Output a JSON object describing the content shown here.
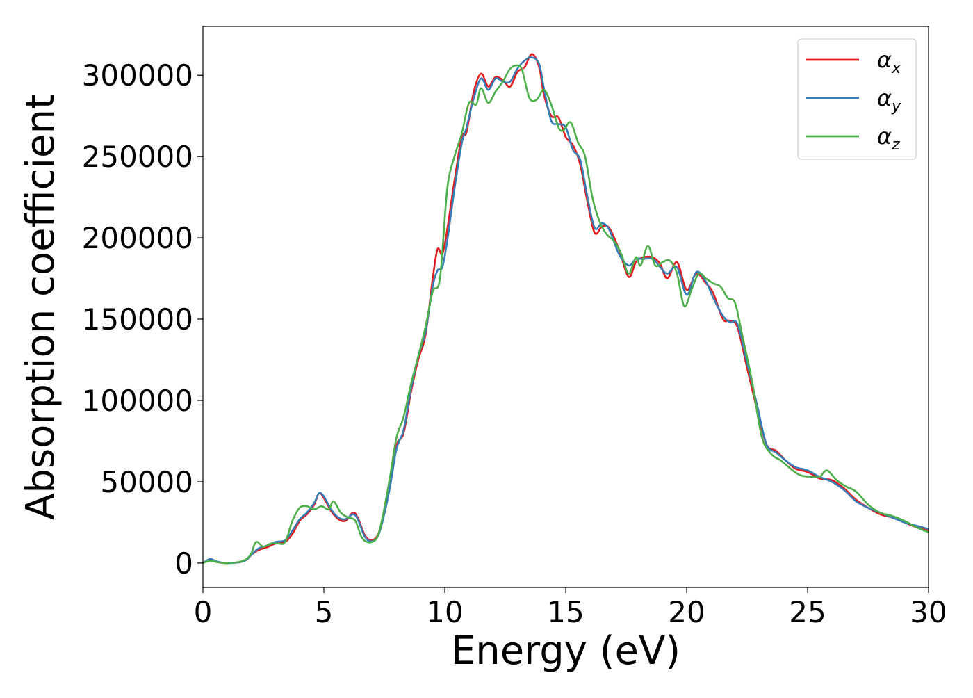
{
  "chart_data": {
    "type": "line",
    "title": "",
    "xlabel": "Energy (eV)",
    "ylabel": "Absorption coefficient",
    "xlim": [
      0,
      30
    ],
    "ylim": [
      -15000,
      330000
    ],
    "xticks": [
      0,
      5,
      10,
      15,
      20,
      25,
      30
    ],
    "xtick_labels": [
      "0",
      "5",
      "10",
      "15",
      "20",
      "25",
      "30"
    ],
    "yticks": [
      0,
      50000,
      100000,
      150000,
      200000,
      250000,
      300000
    ],
    "ytick_labels": [
      "0",
      "50000",
      "100000",
      "150000",
      "200000",
      "250000",
      "300000"
    ],
    "grid": false,
    "legend_position": "top-right",
    "series": [
      {
        "name": "αx",
        "color": "#e41a1c",
        "points": [
          [
            0,
            0
          ],
          [
            0.3,
            2000
          ],
          [
            0.6,
            500
          ],
          [
            1.0,
            0
          ],
          [
            1.5,
            500
          ],
          [
            1.8,
            2000
          ],
          [
            2.0,
            5000
          ],
          [
            2.3,
            8000
          ],
          [
            2.7,
            10000
          ],
          [
            3.0,
            12000
          ],
          [
            3.4,
            13000
          ],
          [
            3.7,
            18000
          ],
          [
            4.0,
            26000
          ],
          [
            4.3,
            30000
          ],
          [
            4.6,
            36000
          ],
          [
            4.8,
            43000
          ],
          [
            5.0,
            40000
          ],
          [
            5.3,
            32000
          ],
          [
            5.6,
            27000
          ],
          [
            5.9,
            26000
          ],
          [
            6.2,
            31000
          ],
          [
            6.4,
            28000
          ],
          [
            6.7,
            17000
          ],
          [
            7.0,
            14000
          ],
          [
            7.3,
            20000
          ],
          [
            7.7,
            45000
          ],
          [
            8.0,
            72000
          ],
          [
            8.3,
            80000
          ],
          [
            8.6,
            105000
          ],
          [
            8.9,
            125000
          ],
          [
            9.2,
            140000
          ],
          [
            9.5,
            175000
          ],
          [
            9.7,
            193000
          ],
          [
            9.9,
            190000
          ],
          [
            10.1,
            205000
          ],
          [
            10.4,
            235000
          ],
          [
            10.7,
            262000
          ],
          [
            10.9,
            265000
          ],
          [
            11.2,
            290000
          ],
          [
            11.5,
            301000
          ],
          [
            11.8,
            293000
          ],
          [
            12.1,
            299000
          ],
          [
            12.4,
            297000
          ],
          [
            12.7,
            293000
          ],
          [
            13.0,
            302000
          ],
          [
            13.3,
            305000
          ],
          [
            13.6,
            313000
          ],
          [
            13.9,
            305000
          ],
          [
            14.1,
            288000
          ],
          [
            14.4,
            275000
          ],
          [
            14.7,
            274000
          ],
          [
            15.0,
            262000
          ],
          [
            15.3,
            257000
          ],
          [
            15.6,
            245000
          ],
          [
            15.9,
            222000
          ],
          [
            16.2,
            203000
          ],
          [
            16.5,
            207000
          ],
          [
            16.8,
            206000
          ],
          [
            17.2,
            193000
          ],
          [
            17.6,
            176000
          ],
          [
            17.9,
            185000
          ],
          [
            18.2,
            188000
          ],
          [
            18.6,
            188000
          ],
          [
            18.9,
            184000
          ],
          [
            19.2,
            175000
          ],
          [
            19.6,
            185000
          ],
          [
            20.0,
            168000
          ],
          [
            20.4,
            178000
          ],
          [
            20.8,
            172000
          ],
          [
            21.1,
            166000
          ],
          [
            21.5,
            150000
          ],
          [
            21.8,
            149000
          ],
          [
            22.1,
            145000
          ],
          [
            22.5,
            120000
          ],
          [
            22.9,
            95000
          ],
          [
            23.3,
            73000
          ],
          [
            23.7,
            69000
          ],
          [
            24.1,
            63000
          ],
          [
            24.5,
            58000
          ],
          [
            25.0,
            56000
          ],
          [
            25.5,
            52000
          ],
          [
            26.0,
            51000
          ],
          [
            26.5,
            46000
          ],
          [
            27.0,
            39000
          ],
          [
            27.5,
            34000
          ],
          [
            28.0,
            30000
          ],
          [
            28.5,
            28000
          ],
          [
            29.0,
            25000
          ],
          [
            29.5,
            22000
          ],
          [
            30.0,
            20000
          ]
        ]
      },
      {
        "name": "αy",
        "color": "#377eb8",
        "points": [
          [
            0,
            0
          ],
          [
            0.3,
            2500
          ],
          [
            0.6,
            800
          ],
          [
            1.0,
            0
          ],
          [
            1.5,
            500
          ],
          [
            1.8,
            2000
          ],
          [
            2.0,
            5000
          ],
          [
            2.3,
            9000
          ],
          [
            2.7,
            11000
          ],
          [
            3.0,
            13000
          ],
          [
            3.4,
            14000
          ],
          [
            3.7,
            20000
          ],
          [
            4.0,
            27000
          ],
          [
            4.3,
            31000
          ],
          [
            4.6,
            37000
          ],
          [
            4.8,
            43000
          ],
          [
            5.0,
            41000
          ],
          [
            5.3,
            33000
          ],
          [
            5.6,
            28000
          ],
          [
            5.9,
            27000
          ],
          [
            6.2,
            30000
          ],
          [
            6.4,
            27000
          ],
          [
            6.7,
            16000
          ],
          [
            7.0,
            13500
          ],
          [
            7.3,
            19000
          ],
          [
            7.7,
            44000
          ],
          [
            8.0,
            70000
          ],
          [
            8.3,
            82000
          ],
          [
            8.6,
            107000
          ],
          [
            8.9,
            127000
          ],
          [
            9.2,
            142000
          ],
          [
            9.5,
            170000
          ],
          [
            9.7,
            180000
          ],
          [
            9.9,
            182000
          ],
          [
            10.1,
            198000
          ],
          [
            10.4,
            230000
          ],
          [
            10.7,
            258000
          ],
          [
            10.9,
            268000
          ],
          [
            11.2,
            286000
          ],
          [
            11.5,
            298000
          ],
          [
            11.8,
            291000
          ],
          [
            12.1,
            298000
          ],
          [
            12.4,
            296000
          ],
          [
            12.7,
            296000
          ],
          [
            13.0,
            304000
          ],
          [
            13.3,
            309000
          ],
          [
            13.6,
            311000
          ],
          [
            13.9,
            307000
          ],
          [
            14.1,
            292000
          ],
          [
            14.4,
            272000
          ],
          [
            14.7,
            270000
          ],
          [
            15.0,
            268000
          ],
          [
            15.3,
            254000
          ],
          [
            15.6,
            248000
          ],
          [
            15.9,
            225000
          ],
          [
            16.2,
            206000
          ],
          [
            16.5,
            209000
          ],
          [
            16.8,
            205000
          ],
          [
            17.2,
            190000
          ],
          [
            17.6,
            183000
          ],
          [
            17.9,
            187000
          ],
          [
            18.2,
            187000
          ],
          [
            18.6,
            187000
          ],
          [
            18.9,
            182000
          ],
          [
            19.2,
            178000
          ],
          [
            19.6,
            182000
          ],
          [
            20.0,
            165000
          ],
          [
            20.4,
            179000
          ],
          [
            20.8,
            173000
          ],
          [
            21.1,
            163000
          ],
          [
            21.5,
            152000
          ],
          [
            21.8,
            148000
          ],
          [
            22.1,
            147000
          ],
          [
            22.5,
            123000
          ],
          [
            22.9,
            98000
          ],
          [
            23.3,
            73000
          ],
          [
            23.7,
            68000
          ],
          [
            24.1,
            63000
          ],
          [
            24.5,
            59000
          ],
          [
            25.0,
            57000
          ],
          [
            25.5,
            53000
          ],
          [
            26.0,
            50000
          ],
          [
            26.5,
            45000
          ],
          [
            27.0,
            38000
          ],
          [
            27.5,
            34000
          ],
          [
            28.0,
            31000
          ],
          [
            28.5,
            28000
          ],
          [
            29.0,
            25000
          ],
          [
            29.5,
            23000
          ],
          [
            30.0,
            21000
          ]
        ]
      },
      {
        "name": "αz",
        "color": "#4daf4a",
        "points": [
          [
            0,
            0
          ],
          [
            0.3,
            1500
          ],
          [
            0.6,
            500
          ],
          [
            1.0,
            0
          ],
          [
            1.5,
            700
          ],
          [
            1.8,
            2500
          ],
          [
            2.0,
            6000
          ],
          [
            2.2,
            13000
          ],
          [
            2.5,
            10000
          ],
          [
            2.8,
            12000
          ],
          [
            3.1,
            12000
          ],
          [
            3.4,
            13000
          ],
          [
            3.7,
            26000
          ],
          [
            4.0,
            34000
          ],
          [
            4.3,
            35000
          ],
          [
            4.6,
            33000
          ],
          [
            4.9,
            35000
          ],
          [
            5.2,
            33000
          ],
          [
            5.4,
            38000
          ],
          [
            5.7,
            31000
          ],
          [
            6.0,
            28000
          ],
          [
            6.3,
            26000
          ],
          [
            6.6,
            15000
          ],
          [
            7.0,
            13000
          ],
          [
            7.3,
            20000
          ],
          [
            7.7,
            50000
          ],
          [
            8.0,
            77000
          ],
          [
            8.3,
            90000
          ],
          [
            8.6,
            110000
          ],
          [
            8.9,
            127000
          ],
          [
            9.2,
            145000
          ],
          [
            9.5,
            167000
          ],
          [
            9.8,
            175000
          ],
          [
            10.1,
            230000
          ],
          [
            10.4,
            250000
          ],
          [
            10.7,
            264000
          ],
          [
            11.0,
            283000
          ],
          [
            11.3,
            282000
          ],
          [
            11.5,
            292000
          ],
          [
            11.8,
            283000
          ],
          [
            12.1,
            290000
          ],
          [
            12.4,
            296000
          ],
          [
            12.7,
            304000
          ],
          [
            13.0,
            306000
          ],
          [
            13.2,
            303000
          ],
          [
            13.5,
            286000
          ],
          [
            13.8,
            285000
          ],
          [
            14.1,
            291000
          ],
          [
            14.4,
            282000
          ],
          [
            14.7,
            268000
          ],
          [
            14.9,
            266000
          ],
          [
            15.2,
            271000
          ],
          [
            15.5,
            259000
          ],
          [
            15.8,
            250000
          ],
          [
            16.1,
            225000
          ],
          [
            16.4,
            210000
          ],
          [
            16.7,
            202000
          ],
          [
            17.0,
            198000
          ],
          [
            17.3,
            190000
          ],
          [
            17.6,
            178000
          ],
          [
            17.9,
            188000
          ],
          [
            18.1,
            183000
          ],
          [
            18.4,
            195000
          ],
          [
            18.7,
            183000
          ],
          [
            19.0,
            185000
          ],
          [
            19.3,
            186000
          ],
          [
            19.6,
            178000
          ],
          [
            19.9,
            158000
          ],
          [
            20.2,
            168000
          ],
          [
            20.5,
            178000
          ],
          [
            20.8,
            175000
          ],
          [
            21.1,
            172000
          ],
          [
            21.4,
            170000
          ],
          [
            21.7,
            163000
          ],
          [
            22.0,
            160000
          ],
          [
            22.3,
            140000
          ],
          [
            22.7,
            112000
          ],
          [
            23.1,
            78000
          ],
          [
            23.5,
            67000
          ],
          [
            23.9,
            63000
          ],
          [
            24.3,
            58000
          ],
          [
            24.7,
            54000
          ],
          [
            25.2,
            53000
          ],
          [
            25.5,
            53000
          ],
          [
            25.8,
            57000
          ],
          [
            26.2,
            51000
          ],
          [
            26.6,
            47000
          ],
          [
            27.0,
            44000
          ],
          [
            27.5,
            36000
          ],
          [
            28.0,
            31000
          ],
          [
            28.5,
            29000
          ],
          [
            29.0,
            26000
          ],
          [
            29.5,
            22000
          ],
          [
            30.0,
            19000
          ]
        ]
      }
    ]
  }
}
